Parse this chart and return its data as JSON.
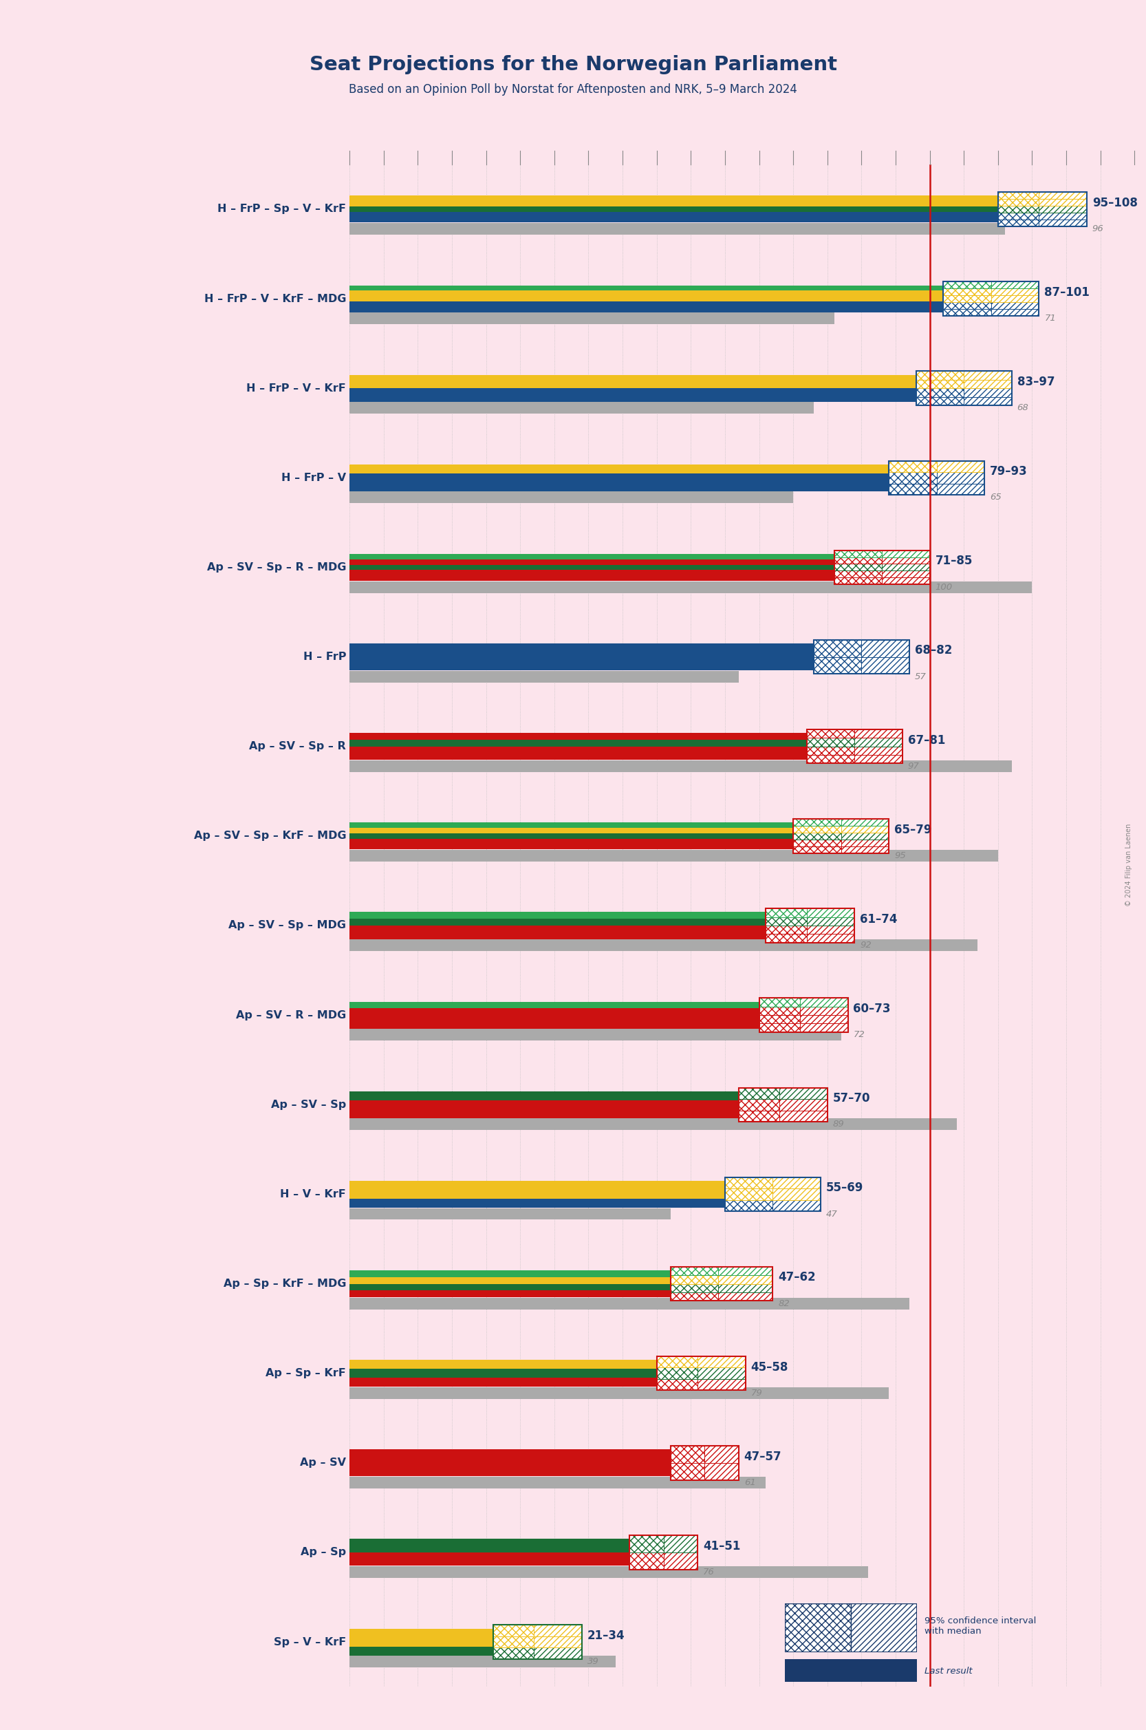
{
  "title": "Seat Projections for the Norwegian Parliament",
  "subtitle": "Based on an Opinion Poll by Norstat for Aftenposten and NRK, 5–9 March 2024",
  "background_color": "#fce4ec",
  "coalitions": [
    {
      "name": "H – FrP – Sp – V – KrF",
      "min": 95,
      "max": 108,
      "median": 101,
      "last": 96,
      "parties": [
        "H",
        "FrP",
        "Sp",
        "V",
        "KrF"
      ],
      "underline": false
    },
    {
      "name": "H – FrP – V – KrF – MDG",
      "min": 87,
      "max": 101,
      "median": 94,
      "last": 71,
      "parties": [
        "H",
        "FrP",
        "V",
        "KrF",
        "MDG"
      ],
      "underline": false
    },
    {
      "name": "H – FrP – V – KrF",
      "min": 83,
      "max": 97,
      "median": 90,
      "last": 68,
      "parties": [
        "H",
        "FrP",
        "V",
        "KrF"
      ],
      "underline": false
    },
    {
      "name": "H – FrP – V",
      "min": 79,
      "max": 93,
      "median": 86,
      "last": 65,
      "parties": [
        "H",
        "FrP",
        "V"
      ],
      "underline": false
    },
    {
      "name": "Ap – SV – Sp – R – MDG",
      "min": 71,
      "max": 85,
      "median": 78,
      "last": 100,
      "parties": [
        "Ap",
        "SV",
        "Sp",
        "R",
        "MDG"
      ],
      "underline": false
    },
    {
      "name": "H – FrP",
      "min": 68,
      "max": 82,
      "median": 75,
      "last": 57,
      "parties": [
        "H",
        "FrP"
      ],
      "underline": false
    },
    {
      "name": "Ap – SV – Sp – R",
      "min": 67,
      "max": 81,
      "median": 74,
      "last": 97,
      "parties": [
        "Ap",
        "SV",
        "Sp",
        "R"
      ],
      "underline": false
    },
    {
      "name": "Ap – SV – Sp – KrF – MDG",
      "min": 65,
      "max": 79,
      "median": 72,
      "last": 95,
      "parties": [
        "Ap",
        "SV",
        "Sp",
        "KrF",
        "MDG"
      ],
      "underline": false
    },
    {
      "name": "Ap – SV – Sp – MDG",
      "min": 61,
      "max": 74,
      "median": 67,
      "last": 92,
      "parties": [
        "Ap",
        "SV",
        "Sp",
        "MDG"
      ],
      "underline": false
    },
    {
      "name": "Ap – SV – R – MDG",
      "min": 60,
      "max": 73,
      "median": 66,
      "last": 72,
      "parties": [
        "Ap",
        "SV",
        "R",
        "MDG"
      ],
      "underline": false
    },
    {
      "name": "Ap – SV – Sp",
      "min": 57,
      "max": 70,
      "median": 63,
      "last": 89,
      "parties": [
        "Ap",
        "SV",
        "Sp"
      ],
      "underline": false
    },
    {
      "name": "H – V – KrF",
      "min": 55,
      "max": 69,
      "median": 62,
      "last": 47,
      "parties": [
        "H",
        "V",
        "KrF"
      ],
      "underline": false
    },
    {
      "name": "Ap – Sp – KrF – MDG",
      "min": 47,
      "max": 62,
      "median": 54,
      "last": 82,
      "parties": [
        "Ap",
        "Sp",
        "KrF",
        "MDG"
      ],
      "underline": false
    },
    {
      "name": "Ap – Sp – KrF",
      "min": 45,
      "max": 58,
      "median": 51,
      "last": 79,
      "parties": [
        "Ap",
        "Sp",
        "KrF"
      ],
      "underline": false
    },
    {
      "name": "Ap – SV",
      "min": 47,
      "max": 57,
      "median": 52,
      "last": 61,
      "parties": [
        "Ap",
        "SV"
      ],
      "underline": true
    },
    {
      "name": "Ap – Sp",
      "min": 41,
      "max": 51,
      "median": 46,
      "last": 76,
      "parties": [
        "Ap",
        "Sp"
      ],
      "underline": false
    },
    {
      "name": "Sp – V – KrF",
      "min": 21,
      "max": 34,
      "median": 27,
      "last": 39,
      "parties": [
        "Sp",
        "V",
        "KrF"
      ],
      "underline": false
    }
  ],
  "stripe_colors": {
    "H": "#1a4f8a",
    "FrP": "#1a4f8a",
    "Sp": "#1a6e35",
    "V": "#f0c020",
    "KrF": "#f0c020",
    "MDG": "#2eaa55",
    "Ap": "#cc1111",
    "SV": "#cc1111",
    "R": "#cc1111"
  },
  "majority_line": 85,
  "x_max": 115,
  "label_color": "#1a3a6b",
  "last_result_color": "#aaaaaa",
  "majority_line_color": "#cc1111",
  "grid_color": "#c0c0c0"
}
